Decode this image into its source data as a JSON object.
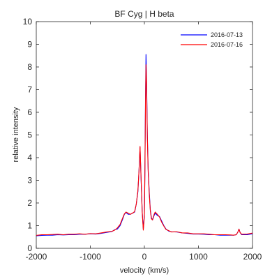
{
  "chart_data": {
    "type": "line",
    "title": "BF Cyg | H beta",
    "xlabel": "velocity (km/s)",
    "ylabel": "relative intensity",
    "xlim": [
      -2000,
      2000
    ],
    "ylim": [
      0,
      10
    ],
    "xticks": [
      "-2000",
      "-1000",
      "0",
      "1000",
      "2000"
    ],
    "yticks": [
      "0",
      "1",
      "2",
      "3",
      "4",
      "5",
      "6",
      "7",
      "8",
      "9",
      "10"
    ],
    "grid": false,
    "legend_position": "top-right",
    "series": [
      {
        "name": "2016-07-13",
        "color": "#0000ff",
        "points": [
          [
            -2000,
            0.55
          ],
          [
            -1900,
            0.57
          ],
          [
            -1800,
            0.58
          ],
          [
            -1700,
            0.58
          ],
          [
            -1600,
            0.6
          ],
          [
            -1500,
            0.59
          ],
          [
            -1400,
            0.6
          ],
          [
            -1300,
            0.6
          ],
          [
            -1200,
            0.62
          ],
          [
            -1100,
            0.62
          ],
          [
            -1000,
            0.64
          ],
          [
            -900,
            0.63
          ],
          [
            -800,
            0.66
          ],
          [
            -700,
            0.7
          ],
          [
            -600,
            0.74
          ],
          [
            -550,
            0.82
          ],
          [
            -500,
            0.85
          ],
          [
            -450,
            1.0
          ],
          [
            -400,
            1.3
          ],
          [
            -370,
            1.5
          ],
          [
            -340,
            1.58
          ],
          [
            -300,
            1.5
          ],
          [
            -260,
            1.5
          ],
          [
            -220,
            1.55
          ],
          [
            -180,
            1.6
          ],
          [
            -150,
            1.95
          ],
          [
            -120,
            2.5
          ],
          [
            -100,
            3.4
          ],
          [
            -80,
            4.45
          ],
          [
            -60,
            3.0
          ],
          [
            -40,
            1.6
          ],
          [
            -20,
            0.85
          ],
          [
            0,
            1.5
          ],
          [
            10,
            3.5
          ],
          [
            20,
            6.5
          ],
          [
            30,
            8.55
          ],
          [
            40,
            7.5
          ],
          [
            55,
            5.0
          ],
          [
            70,
            3.5
          ],
          [
            90,
            2.5
          ],
          [
            110,
            1.7
          ],
          [
            130,
            1.35
          ],
          [
            150,
            1.25
          ],
          [
            180,
            1.45
          ],
          [
            200,
            1.55
          ],
          [
            240,
            1.45
          ],
          [
            280,
            1.4
          ],
          [
            320,
            1.2
          ],
          [
            360,
            1.0
          ],
          [
            400,
            0.85
          ],
          [
            450,
            0.76
          ],
          [
            500,
            0.73
          ],
          [
            600,
            0.72
          ],
          [
            700,
            0.68
          ],
          [
            800,
            0.66
          ],
          [
            900,
            0.63
          ],
          [
            1000,
            0.63
          ],
          [
            1100,
            0.62
          ],
          [
            1200,
            0.6
          ],
          [
            1300,
            0.6
          ],
          [
            1400,
            0.58
          ],
          [
            1500,
            0.58
          ],
          [
            1600,
            0.58
          ],
          [
            1650,
            0.58
          ],
          [
            1700,
            0.6
          ],
          [
            1730,
            0.72
          ],
          [
            1750,
            0.85
          ],
          [
            1770,
            0.7
          ],
          [
            1800,
            0.6
          ],
          [
            1900,
            0.6
          ],
          [
            2000,
            0.64
          ]
        ]
      },
      {
        "name": "2016-07-16",
        "color": "#ff0000",
        "points": [
          [
            -2000,
            0.57
          ],
          [
            -1900,
            0.6
          ],
          [
            -1800,
            0.6
          ],
          [
            -1700,
            0.61
          ],
          [
            -1600,
            0.62
          ],
          [
            -1500,
            0.6
          ],
          [
            -1400,
            0.62
          ],
          [
            -1300,
            0.62
          ],
          [
            -1200,
            0.64
          ],
          [
            -1100,
            0.62
          ],
          [
            -1000,
            0.65
          ],
          [
            -900,
            0.64
          ],
          [
            -800,
            0.68
          ],
          [
            -700,
            0.72
          ],
          [
            -600,
            0.75
          ],
          [
            -550,
            0.8
          ],
          [
            -500,
            0.9
          ],
          [
            -450,
            1.05
          ],
          [
            -400,
            1.35
          ],
          [
            -370,
            1.52
          ],
          [
            -340,
            1.6
          ],
          [
            -300,
            1.55
          ],
          [
            -260,
            1.5
          ],
          [
            -220,
            1.55
          ],
          [
            -180,
            1.62
          ],
          [
            -150,
            1.95
          ],
          [
            -120,
            2.55
          ],
          [
            -100,
            3.4
          ],
          [
            -80,
            4.5
          ],
          [
            -60,
            3.0
          ],
          [
            -40,
            1.6
          ],
          [
            -20,
            0.8
          ],
          [
            0,
            1.4
          ],
          [
            10,
            3.4
          ],
          [
            20,
            6.3
          ],
          [
            30,
            8.1
          ],
          [
            40,
            7.3
          ],
          [
            55,
            4.9
          ],
          [
            70,
            3.4
          ],
          [
            90,
            2.4
          ],
          [
            110,
            1.65
          ],
          [
            130,
            1.3
          ],
          [
            150,
            1.25
          ],
          [
            180,
            1.5
          ],
          [
            200,
            1.6
          ],
          [
            240,
            1.5
          ],
          [
            280,
            1.38
          ],
          [
            320,
            1.15
          ],
          [
            360,
            0.98
          ],
          [
            400,
            0.83
          ],
          [
            450,
            0.78
          ],
          [
            500,
            0.72
          ],
          [
            600,
            0.73
          ],
          [
            700,
            0.68
          ],
          [
            800,
            0.68
          ],
          [
            900,
            0.64
          ],
          [
            1000,
            0.64
          ],
          [
            1100,
            0.64
          ],
          [
            1200,
            0.62
          ],
          [
            1300,
            0.6
          ],
          [
            1400,
            0.6
          ],
          [
            1500,
            0.6
          ],
          [
            1600,
            0.59
          ],
          [
            1650,
            0.58
          ],
          [
            1700,
            0.6
          ],
          [
            1730,
            0.72
          ],
          [
            1750,
            0.85
          ],
          [
            1770,
            0.7
          ],
          [
            1800,
            0.62
          ],
          [
            1900,
            0.63
          ],
          [
            2000,
            0.67
          ]
        ]
      }
    ]
  }
}
